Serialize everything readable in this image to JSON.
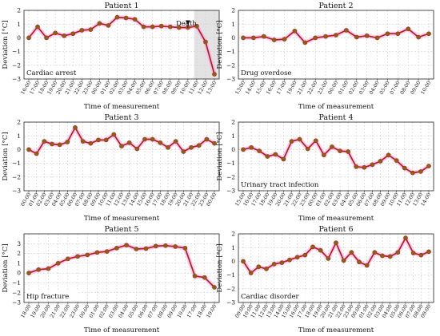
{
  "chart_data": [
    {
      "type": "line",
      "title": "Patient 1",
      "xlabel": "Time of measurement",
      "ylabel": "Deviation [°C]",
      "ylim": [
        -3,
        2
      ],
      "yticks": [
        -3,
        -2,
        -1,
        0,
        1,
        2
      ],
      "grid": true,
      "annotation": "Cardiac arrest",
      "event_label": "Death",
      "shaded_from_index": 19,
      "categories": [
        "16:00",
        "17:00",
        "18:00",
        "19:00",
        "20:00",
        "21:00",
        "22:00",
        "23:00",
        "00:00",
        "01:00",
        "02:00",
        "03:00",
        "04:00",
        "05:00",
        "06:00",
        "07:00",
        "08:00",
        "09:00",
        "10:00",
        "11:00",
        "12:00",
        "13:00"
      ],
      "values": [
        0.0,
        0.8,
        0.0,
        0.35,
        0.15,
        0.3,
        0.55,
        0.6,
        1.05,
        0.9,
        1.5,
        1.45,
        1.35,
        0.8,
        0.8,
        0.85,
        0.8,
        0.75,
        0.75,
        0.85,
        -0.3,
        -2.65
      ]
    },
    {
      "type": "line",
      "title": "Patient 2",
      "xlabel": "Time of measurement",
      "ylabel": "Deviation [°C]",
      "ylim": [
        -3,
        2
      ],
      "yticks": [
        -3,
        -2,
        -1,
        0,
        1,
        2
      ],
      "grid": true,
      "annotation": "Drug overdose",
      "categories": [
        "13:00",
        "14:00",
        "15:00",
        "16:00",
        "17:00",
        "19:00",
        "21:00",
        "22:00",
        "23:00",
        "00:00",
        "01:00",
        "02:00",
        "03:00",
        "04:00",
        "05:00",
        "07:00",
        "08:00",
        "09:00",
        "10:00"
      ],
      "values": [
        0.0,
        0.0,
        0.1,
        -0.15,
        -0.1,
        0.5,
        -0.35,
        0.0,
        0.1,
        0.2,
        0.55,
        0.05,
        0.15,
        0.0,
        0.3,
        0.3,
        0.65,
        0.05,
        0.3
      ]
    },
    {
      "type": "line",
      "title": "Patient 3",
      "xlabel": "Time of measurement",
      "ylabel": "Deviation [°C]",
      "ylim": [
        -3,
        2
      ],
      "yticks": [
        -3,
        -2,
        -1,
        0,
        1,
        2
      ],
      "grid": true,
      "categories": [
        "00:00",
        "01:00",
        "02:00",
        "03:00",
        "04:00",
        "05:00",
        "06:00",
        "07:00",
        "08:00",
        "09:00",
        "10:00",
        "11:00",
        "12:00",
        "13:00",
        "14:00",
        "15:00",
        "16:00",
        "17:00",
        "18:00",
        "19:00",
        "20:00",
        "21:00",
        "22:00",
        "23:00",
        "00:00"
      ],
      "values": [
        0.0,
        -0.3,
        0.6,
        0.4,
        0.35,
        0.55,
        1.6,
        0.6,
        0.45,
        0.7,
        0.7,
        1.1,
        0.25,
        0.5,
        0.05,
        0.75,
        0.75,
        0.5,
        0.15,
        0.6,
        -0.15,
        0.15,
        0.3,
        0.75,
        0.45
      ]
    },
    {
      "type": "line",
      "title": "Patient 4",
      "xlabel": "Time of measurement",
      "ylabel": "Deviation [°C]",
      "ylim": [
        -3,
        2
      ],
      "yticks": [
        -3,
        -2,
        -1,
        0,
        1,
        2
      ],
      "grid": true,
      "annotation": "Urinary tract infection",
      "categories": [
        "15:00",
        "16:00",
        "17:00",
        "18:00",
        "19:00",
        "20:00",
        "21:00",
        "22:00",
        "23:00",
        "00:00",
        "01:00",
        "02:00",
        "03:00",
        "04:00",
        "05:00",
        "06:00",
        "07:00",
        "08:00",
        "09:00",
        "10:00",
        "11:00",
        "12:00",
        "13:00",
        "14:00"
      ],
      "values": [
        0.0,
        0.15,
        -0.1,
        -0.5,
        -0.35,
        -0.7,
        0.6,
        0.75,
        0.05,
        0.65,
        -0.4,
        0.2,
        -0.1,
        -0.15,
        -1.25,
        -1.3,
        -1.1,
        -0.85,
        -0.4,
        -0.8,
        -1.35,
        -1.7,
        -1.6,
        -1.2
      ]
    },
    {
      "type": "line",
      "title": "Patient 5",
      "xlabel": "Time of measurement",
      "ylabel": "Deviation [°C]",
      "ylim": [
        -3,
        4
      ],
      "yticks": [
        -3,
        -2,
        -1,
        0,
        1,
        2,
        3
      ],
      "grid": true,
      "annotation": "Hip fracture",
      "categories": [
        "18:00",
        "19:00",
        "20:00",
        "21:00",
        "22:00",
        "23:00",
        "00:00",
        "01:00",
        "02:00",
        "03:00",
        "04:00",
        "05:00",
        "06:00",
        "07:00",
        "08:00",
        "09:00",
        "10:00",
        "17:00",
        "18:00",
        "19:00"
      ],
      "values": [
        0.0,
        0.35,
        0.45,
        1.0,
        1.45,
        1.7,
        1.85,
        2.1,
        2.2,
        2.55,
        2.85,
        2.45,
        2.5,
        2.75,
        2.8,
        2.7,
        2.55,
        -0.3,
        -0.45,
        -1.45
      ]
    },
    {
      "type": "line",
      "title": "Patient 6",
      "xlabel": "Time of measurement",
      "ylabel": "Deviation [°C]",
      "ylim": [
        -3,
        2
      ],
      "yticks": [
        -3,
        -2,
        -1,
        0,
        1,
        2
      ],
      "grid": true,
      "annotation": "Cardiac disorder",
      "categories": [
        "09:00",
        "10:00",
        "11:00",
        "12:00",
        "13:00",
        "14:00",
        "15:00",
        "16:00",
        "17:00",
        "18:00",
        "19:00",
        "20:00",
        "21:00",
        "22:00",
        "23:00",
        "00:00",
        "01:00",
        "02:00",
        "03:00",
        "04:00",
        "05:00",
        "06:00",
        "07:00",
        "08:00",
        "09:00"
      ],
      "values": [
        0.0,
        -0.85,
        -0.4,
        -0.55,
        -0.2,
        -0.1,
        0.1,
        0.3,
        0.45,
        1.05,
        0.8,
        0.2,
        1.35,
        0.05,
        0.65,
        -0.05,
        -0.3,
        0.65,
        0.4,
        0.35,
        0.65,
        1.7,
        0.6,
        0.45,
        0.7
      ]
    }
  ]
}
